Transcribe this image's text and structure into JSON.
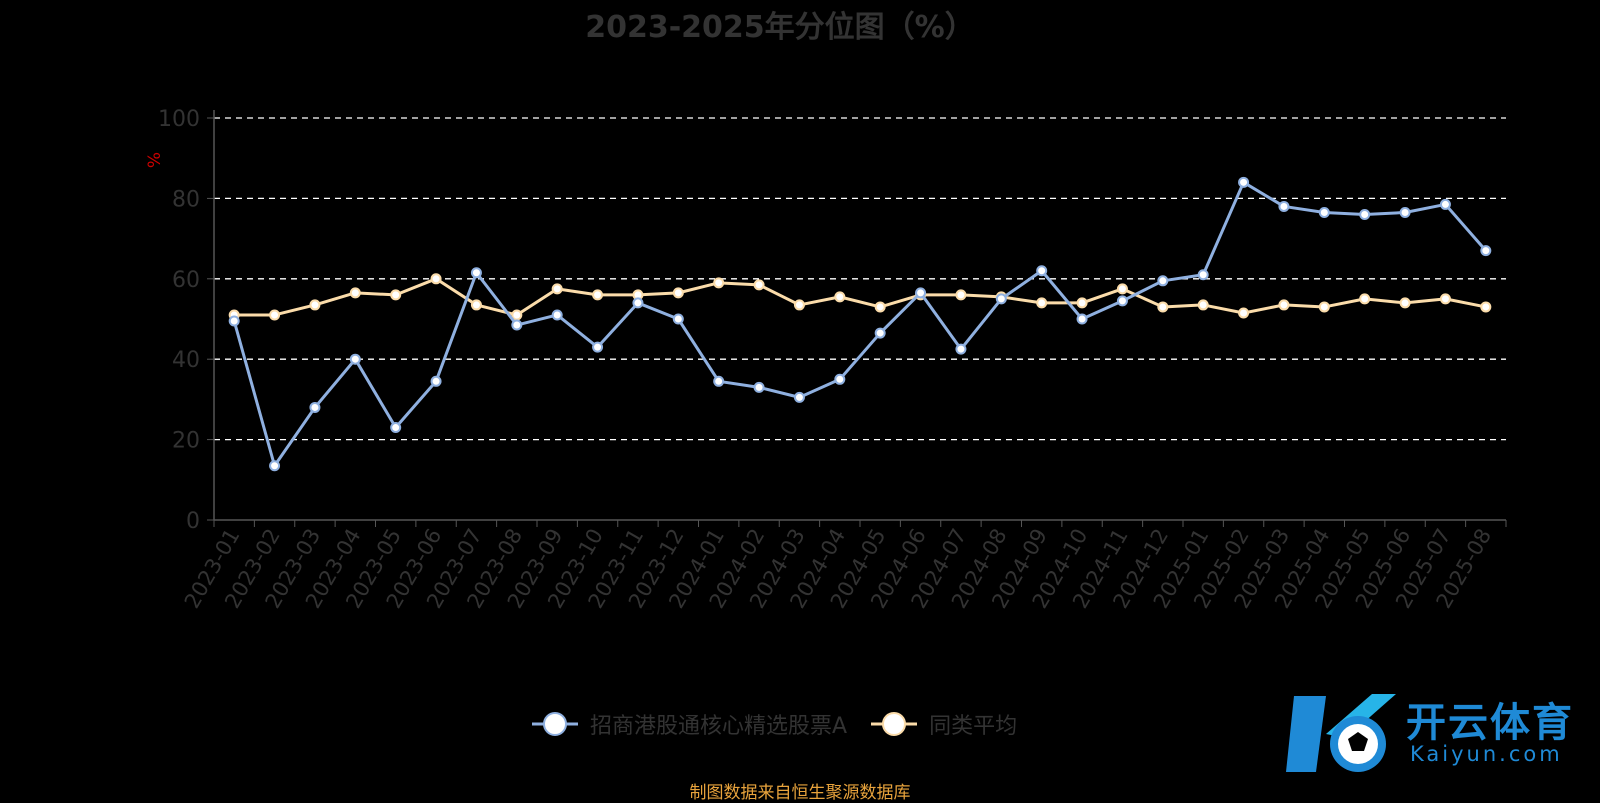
{
  "chart_data": {
    "type": "line",
    "title": "2023-2025年分位图（%）",
    "ylabel": "%",
    "ylim": [
      0,
      100
    ],
    "yticks": [
      0,
      20,
      40,
      60,
      80,
      100
    ],
    "grid": true,
    "legend_position": "bottom",
    "categories": [
      "2023-01",
      "2023-02",
      "2023-03",
      "2023-04",
      "2023-05",
      "2023-06",
      "2023-07",
      "2023-08",
      "2023-09",
      "2023-10",
      "2023-11",
      "2023-12",
      "2024-01",
      "2024-02",
      "2024-03",
      "2024-04",
      "2024-05",
      "2024-06",
      "2024-07",
      "2024-08",
      "2024-09",
      "2024-10",
      "2024-11",
      "2024-12",
      "2025-01",
      "2025-02",
      "2025-03",
      "2025-04",
      "2025-05",
      "2025-06",
      "2025-07",
      "2025-08"
    ],
    "series": [
      {
        "name": "招商港股通核心精选股票A",
        "color": "#8fb0e0",
        "values": [
          49.5,
          13.5,
          28,
          40,
          23,
          34.5,
          61.5,
          48.5,
          51,
          43,
          54,
          50,
          34.5,
          33,
          30.5,
          35,
          46.5,
          56.5,
          42.5,
          55,
          62,
          50,
          54.5,
          59.5,
          61,
          84,
          78,
          76.5,
          76,
          76.5,
          78.5,
          67
        ]
      },
      {
        "name": "同类平均",
        "color": "#fbdcaa",
        "values": [
          51,
          51,
          53.5,
          56.5,
          56,
          60,
          53.5,
          51,
          57.5,
          56,
          56,
          56.5,
          59,
          58.5,
          53.5,
          55.5,
          53,
          56,
          56,
          55.5,
          54,
          54,
          57.5,
          53,
          53.5,
          51.5,
          53.5,
          53,
          55,
          54,
          55,
          53
        ]
      }
    ]
  },
  "legend": {
    "items": [
      "招商港股通核心精选股票A",
      "同类平均"
    ]
  },
  "source": "制图数据来自恒生聚源数据库",
  "logo": {
    "cn": "开云体育",
    "en": "Kaiyun.com"
  }
}
